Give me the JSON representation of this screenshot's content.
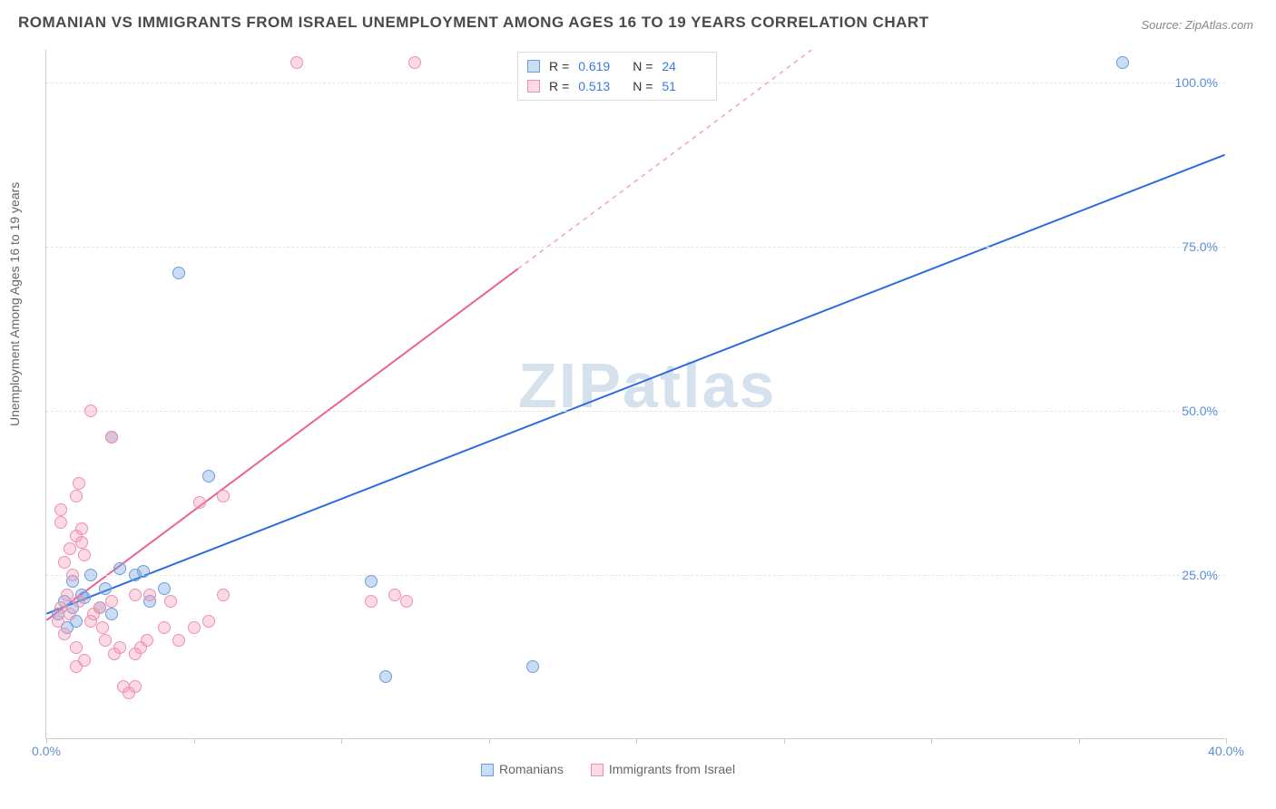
{
  "title": "ROMANIAN VS IMMIGRANTS FROM ISRAEL UNEMPLOYMENT AMONG AGES 16 TO 19 YEARS CORRELATION CHART",
  "source": "Source: ZipAtlas.com",
  "ylabel": "Unemployment Among Ages 16 to 19 years",
  "watermark": "ZIPatlas",
  "chart": {
    "type": "scatter",
    "xlim": [
      0,
      40
    ],
    "ylim": [
      0,
      105
    ],
    "xticks": [
      0,
      5,
      10,
      15,
      20,
      25,
      30,
      35,
      40
    ],
    "xtick_labels": {
      "0": "0.0%",
      "40": "40.0%"
    },
    "yticks": [
      25,
      50,
      75,
      100
    ],
    "background_color": "#ffffff",
    "grid_color": "#e5e5e5",
    "marker_radius": 7,
    "series": [
      {
        "name": "Romanians",
        "color_fill": "rgba(107,157,222,0.35)",
        "color_stroke": "#6b9dde",
        "r_value": "0.619",
        "n_value": "24",
        "trend": {
          "color": "#2f6ae0",
          "width": 2,
          "solid_to_x": 40,
          "x0": 0,
          "y0": 19,
          "slope": 1.75
        },
        "points": [
          [
            0.4,
            19
          ],
          [
            0.6,
            21
          ],
          [
            0.9,
            20
          ],
          [
            1.2,
            22
          ],
          [
            1.5,
            25
          ],
          [
            1.0,
            18
          ],
          [
            2.0,
            23
          ],
          [
            2.5,
            26
          ],
          [
            3.0,
            25
          ],
          [
            3.3,
            25.5
          ],
          [
            4.0,
            23
          ],
          [
            5.5,
            40
          ],
          [
            2.2,
            46
          ],
          [
            4.5,
            71
          ],
          [
            1.8,
            20
          ],
          [
            1.3,
            21.5
          ],
          [
            0.7,
            17
          ],
          [
            0.9,
            24
          ],
          [
            11.0,
            24
          ],
          [
            11.5,
            9.5
          ],
          [
            16.5,
            11
          ],
          [
            36.5,
            103
          ],
          [
            2.2,
            19
          ],
          [
            3.5,
            21
          ]
        ]
      },
      {
        "name": "Immigrants from Israel",
        "color_fill": "rgba(243,148,178,0.35)",
        "color_stroke": "#ef8faf",
        "r_value": "0.513",
        "n_value": "51",
        "trend": {
          "color": "#e96393",
          "width": 2,
          "solid_to_x": 16,
          "x0": 0,
          "y0": 18,
          "slope": 3.35
        },
        "points": [
          [
            0.4,
            18
          ],
          [
            0.5,
            20
          ],
          [
            0.6,
            16
          ],
          [
            0.8,
            19
          ],
          [
            0.7,
            22
          ],
          [
            0.9,
            25
          ],
          [
            1.0,
            14
          ],
          [
            1.1,
            21
          ],
          [
            1.2,
            32
          ],
          [
            1.2,
            30
          ],
          [
            0.5,
            33
          ],
          [
            0.5,
            35
          ],
          [
            1.5,
            18
          ],
          [
            1.6,
            19
          ],
          [
            1.8,
            20
          ],
          [
            1.9,
            17
          ],
          [
            2.0,
            15
          ],
          [
            2.2,
            21
          ],
          [
            2.3,
            13
          ],
          [
            2.5,
            14
          ],
          [
            2.6,
            8
          ],
          [
            2.8,
            7
          ],
          [
            3.0,
            8
          ],
          [
            3.0,
            13
          ],
          [
            3.2,
            14
          ],
          [
            3.4,
            15
          ],
          [
            3.5,
            22
          ],
          [
            3.0,
            22
          ],
          [
            2.2,
            46
          ],
          [
            1.5,
            50
          ],
          [
            4.0,
            17
          ],
          [
            4.2,
            21
          ],
          [
            4.5,
            15
          ],
          [
            5.0,
            17
          ],
          [
            5.2,
            36
          ],
          [
            5.5,
            18
          ],
          [
            6.0,
            37
          ],
          [
            6.0,
            22
          ],
          [
            1.0,
            37
          ],
          [
            1.1,
            39
          ],
          [
            1.0,
            31
          ],
          [
            1.3,
            28
          ],
          [
            0.6,
            27
          ],
          [
            0.8,
            29
          ],
          [
            8.5,
            103
          ],
          [
            12.5,
            103
          ],
          [
            11.0,
            21
          ],
          [
            11.8,
            22
          ],
          [
            12.2,
            21
          ],
          [
            1.0,
            11
          ],
          [
            1.3,
            12
          ]
        ]
      }
    ]
  },
  "legend_top": {
    "border_color": "#dddddd",
    "rows": [
      {
        "swatch_fill": "rgba(107,157,222,0.35)",
        "swatch_stroke": "#6b9dde",
        "r": "0.619",
        "n": "24"
      },
      {
        "swatch_fill": "rgba(243,148,178,0.35)",
        "swatch_stroke": "#ef8faf",
        "r": "0.513",
        "n": "51"
      }
    ]
  },
  "legend_bottom": {
    "items": [
      {
        "label": "Romanians",
        "swatch_fill": "rgba(107,157,222,0.35)",
        "swatch_stroke": "#6b9dde"
      },
      {
        "label": "Immigrants from Israel",
        "swatch_fill": "rgba(243,148,178,0.35)",
        "swatch_stroke": "#ef8faf"
      }
    ]
  },
  "labels": {
    "r_prefix": "R =",
    "n_prefix": "N ="
  }
}
